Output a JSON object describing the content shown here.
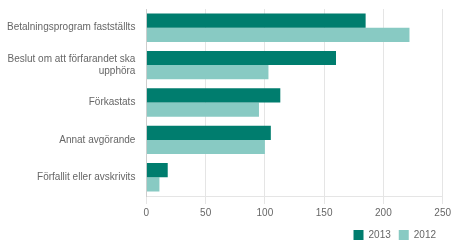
{
  "chart_data": {
    "type": "bar",
    "orientation": "horizontal",
    "categories": [
      "Förfallit eller avskrivits",
      "Annat avgörande",
      "Förkastats",
      "Beslut om att förfarandet ska\nupphöra",
      "Betalningsprogram fastställts"
    ],
    "series": [
      {
        "name": "2013",
        "color": "#007d6e",
        "values": [
          18,
          105,
          113,
          160,
          185
        ]
      },
      {
        "name": "2012",
        "color": "#88cac3",
        "values": [
          11,
          100,
          95,
          103,
          222
        ]
      }
    ],
    "xlim": [
      0,
      250
    ],
    "xticks": [
      0,
      50,
      100,
      150,
      200,
      250
    ],
    "grid": true,
    "legend": "lower right"
  }
}
